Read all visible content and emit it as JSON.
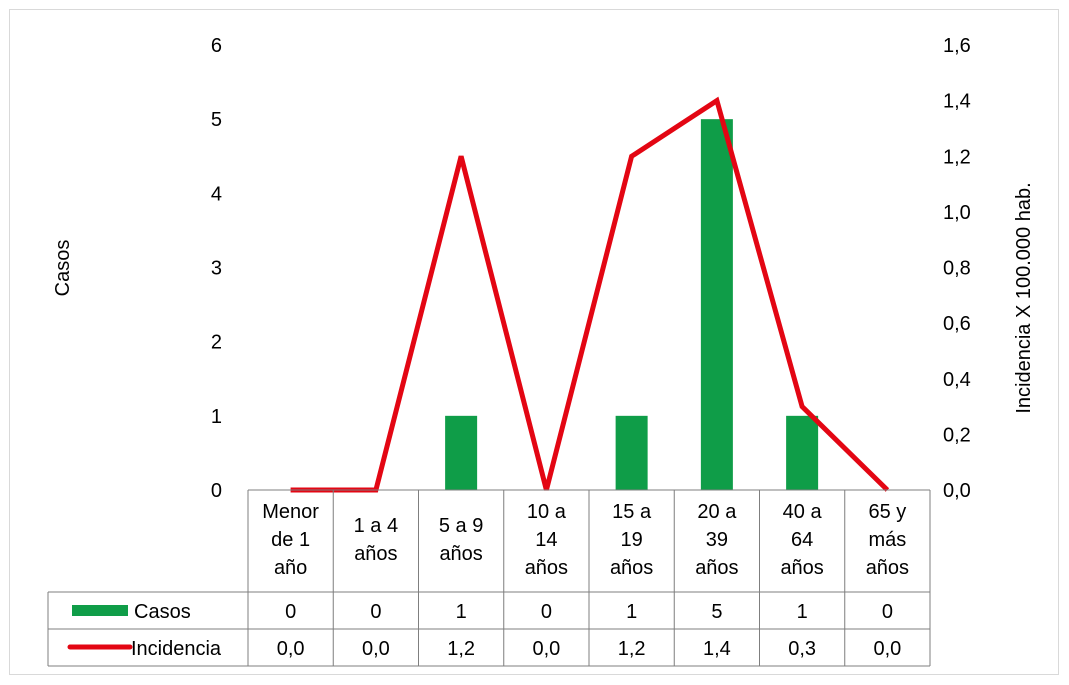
{
  "chart_data": {
    "type": "bar",
    "categories": [
      [
        "Menor",
        "de 1",
        "año"
      ],
      [
        "1 a 4",
        "años"
      ],
      [
        "5 a 9",
        "años"
      ],
      [
        "10 a",
        "14",
        "años"
      ],
      [
        "15 a",
        "19",
        "años"
      ],
      [
        "20 a",
        "39",
        "años"
      ],
      [
        "40 a",
        "64",
        "años"
      ],
      [
        "65 y",
        "más",
        "años"
      ]
    ],
    "series": [
      {
        "name": "Casos",
        "type": "bar",
        "axis": "left",
        "color": "#0f9d48",
        "values": [
          0,
          0,
          1,
          0,
          1,
          5,
          1,
          0
        ],
        "labels": [
          "0",
          "0",
          "1",
          "0",
          "1",
          "5",
          "1",
          "0"
        ]
      },
      {
        "name": "Incidencia",
        "type": "line",
        "axis": "right",
        "color": "#e30613",
        "values": [
          0.0,
          0.0,
          1.2,
          0.0,
          1.2,
          1.4,
          0.3,
          0.0
        ],
        "labels": [
          "0,0",
          "0,0",
          "1,2",
          "0,0",
          "1,2",
          "1,4",
          "0,3",
          "0,0"
        ]
      }
    ],
    "ylabel": "Casos",
    "y2label": "Incidencia X 100.000  hab.",
    "ylim": [
      0,
      6
    ],
    "y2lim": [
      0,
      1.6
    ],
    "yticks": [
      "0",
      "1",
      "2",
      "3",
      "4",
      "5",
      "6"
    ],
    "y2ticks": [
      "0,0",
      "0,2",
      "0,4",
      "0,6",
      "0,8",
      "1,0",
      "1,2",
      "1,4",
      "1,6"
    ],
    "grid": false,
    "legend": "data-table"
  }
}
